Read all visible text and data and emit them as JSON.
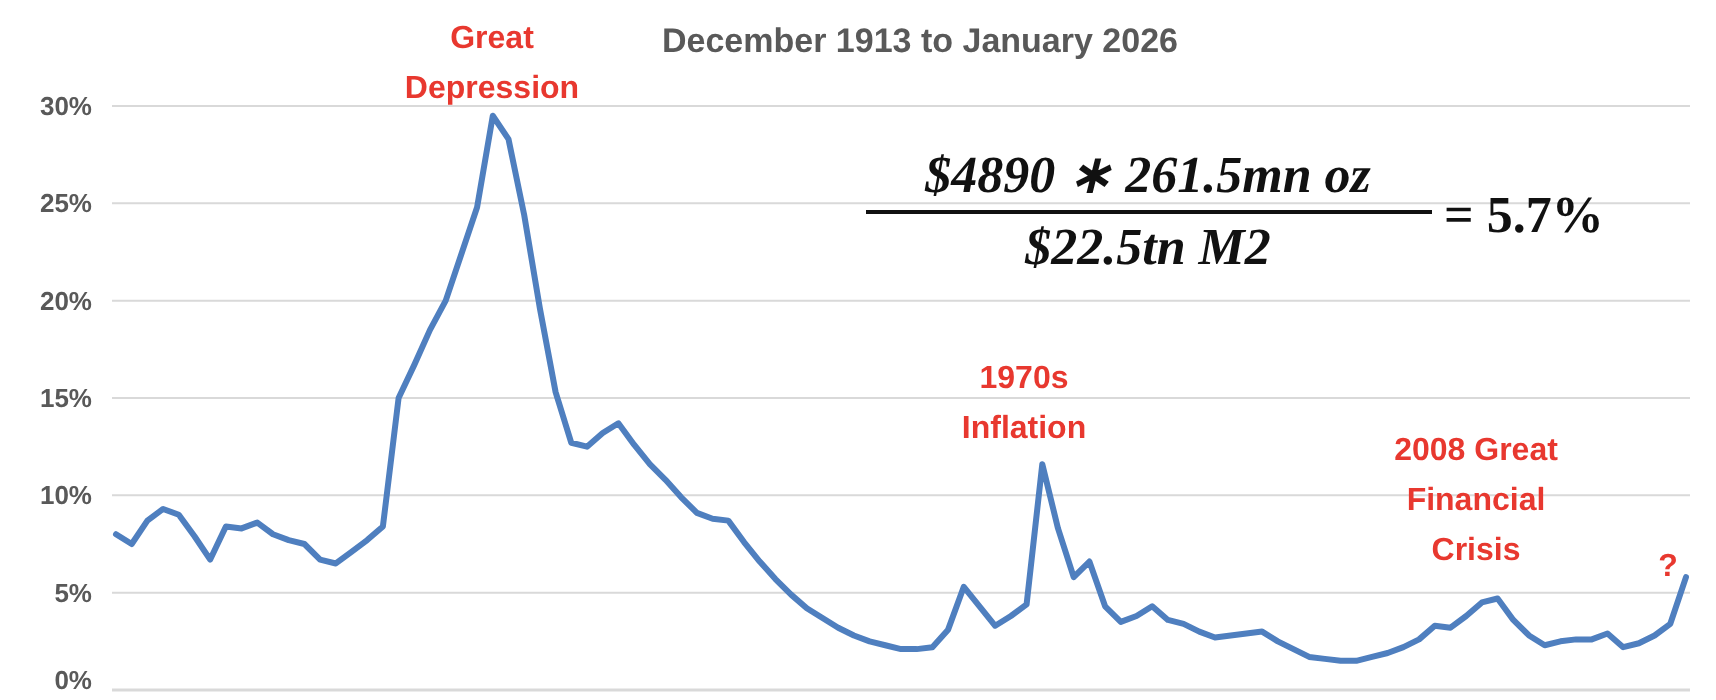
{
  "chart_data": {
    "type": "line",
    "title": "December 1913 to January 2026",
    "categories": [
      null,
      null,
      null,
      null,
      null,
      null,
      null,
      null,
      null,
      null,
      null,
      null,
      null,
      null,
      null,
      null,
      null,
      null,
      null,
      null,
      null,
      null,
      null,
      null,
      null,
      null,
      null,
      null,
      null,
      null,
      null,
      null,
      null,
      null,
      null,
      null,
      null,
      null,
      null,
      null,
      null,
      null,
      null,
      null,
      null,
      null,
      null,
      null,
      null,
      null,
      null,
      null,
      null,
      null,
      null,
      null,
      null,
      null,
      null,
      null,
      null,
      null,
      null,
      null,
      null,
      null,
      null,
      null,
      null,
      null,
      null,
      null,
      null,
      null,
      null,
      null,
      null,
      null,
      null,
      null,
      null,
      null,
      null,
      null,
      null,
      null,
      null,
      null,
      null,
      null,
      null,
      null,
      null,
      null,
      null,
      null,
      null,
      null,
      null,
      null,
      null
    ],
    "series": [
      {
        "color": "#4f7fbf",
        "values": [
          8.0,
          7.5,
          8.7,
          9.3,
          9.0,
          7.9,
          6.7,
          8.4,
          8.3,
          8.6,
          8.0,
          7.7,
          7.5,
          6.7,
          6.5,
          7.1,
          7.7,
          8.4,
          15.0,
          16.7,
          18.5,
          20.0,
          22.4,
          24.8,
          29.5,
          28.3,
          24.4,
          19.6,
          15.3,
          12.7,
          12.5,
          13.2,
          13.7,
          12.6,
          11.6,
          10.8,
          9.9,
          9.1,
          8.8,
          8.7,
          7.6,
          6.6,
          5.7,
          4.9,
          4.2,
          3.7,
          3.2,
          2.8,
          2.5,
          2.3,
          2.1,
          2.1,
          2.2,
          3.1,
          5.3,
          4.3,
          3.3,
          3.8,
          4.4,
          11.6,
          8.3,
          5.8,
          6.6,
          4.3,
          3.5,
          3.8,
          4.3,
          3.6,
          3.4,
          3.0,
          2.7,
          2.8,
          2.9,
          3.0,
          2.5,
          2.1,
          1.7,
          1.6,
          1.5,
          1.5,
          1.7,
          1.9,
          2.2,
          2.6,
          3.3,
          3.2,
          3.8,
          4.5,
          4.7,
          3.6,
          2.8,
          2.3,
          2.5,
          2.6,
          2.6,
          2.9,
          2.2,
          2.4,
          2.8,
          3.4,
          5.8
        ]
      }
    ],
    "ylim": [
      0,
      30
    ],
    "yticks": [
      {
        "value": 0,
        "label": "0%"
      },
      {
        "value": 5,
        "label": "5%"
      },
      {
        "value": 10,
        "label": "10%"
      },
      {
        "value": 15,
        "label": "15%"
      },
      {
        "value": 20,
        "label": "20%"
      },
      {
        "value": 25,
        "label": "25%"
      },
      {
        "value": 30,
        "label": "30%"
      }
    ],
    "tick_labels": "y",
    "grid": "y",
    "marker": "none",
    "line_style": "solid",
    "annotations": [
      "Great Depression",
      "1970s Inflation",
      "2008 Great Financial Crisis",
      "?",
      "$4890 ∗ 261.5mn oz",
      "$22.5tn M2",
      "= 5.7%"
    ]
  }
}
